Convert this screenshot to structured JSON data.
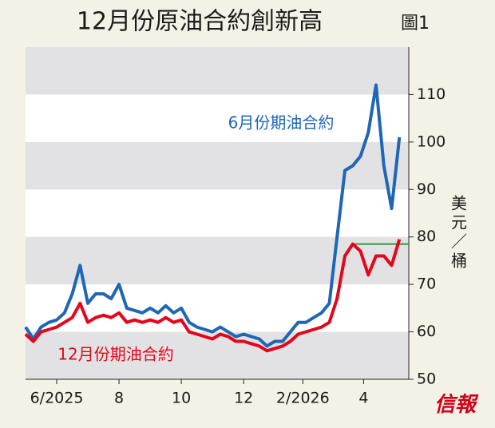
{
  "chart_data": {
    "type": "line",
    "title": "12月份原油合約創新高",
    "figure_label": "圖1",
    "y_label": "美元／桶",
    "source_logo": "信報",
    "x": [
      0,
      0.25,
      0.5,
      0.75,
      1,
      1.25,
      1.5,
      1.75,
      2,
      2.25,
      2.5,
      2.75,
      3,
      3.25,
      3.5,
      3.75,
      4,
      4.25,
      4.5,
      4.75,
      5,
      5.25,
      5.5,
      5.75,
      6,
      6.25,
      6.5,
      6.75,
      7,
      7.25,
      7.5,
      7.75,
      8,
      8.25,
      8.5,
      8.75,
      9,
      9.25,
      9.5,
      9.75,
      10,
      10.25,
      10.5,
      10.75,
      11,
      11.25,
      11.5,
      11.75,
      12
    ],
    "xlim": [
      0,
      12.3
    ],
    "xticks": [
      {
        "value": 1,
        "label": "6/2025"
      },
      {
        "value": 3,
        "label": "8"
      },
      {
        "value": 5,
        "label": "10"
      },
      {
        "value": 7,
        "label": "12"
      },
      {
        "value": 8.9,
        "label": "2/2026"
      },
      {
        "value": 10.85,
        "label": "4"
      }
    ],
    "ylim": [
      50,
      120
    ],
    "yticks": [
      50,
      60,
      70,
      80,
      90,
      100,
      110
    ],
    "grid_bands": true,
    "series": [
      {
        "name": "6月份期油合約",
        "color": "#1f66b5",
        "values": [
          61,
          58.5,
          61,
          62,
          62.5,
          64,
          68,
          74,
          66,
          68,
          68,
          67,
          70,
          65,
          64.5,
          64,
          65,
          64,
          65.5,
          64,
          65,
          62,
          61,
          60.5,
          60,
          61,
          60,
          59,
          59.5,
          59,
          58.5,
          57,
          58,
          58,
          60,
          62,
          62,
          63,
          64,
          66,
          80,
          94,
          95,
          97,
          102,
          112,
          95,
          86,
          101
        ]
      },
      {
        "name": "12月份期油合約",
        "color": "#e3061a",
        "values": [
          59.5,
          58,
          60,
          60.5,
          61,
          62,
          63,
          66,
          62,
          63,
          63.5,
          63,
          64,
          62,
          62.5,
          62,
          62.5,
          62,
          63,
          62,
          62.5,
          60,
          59.5,
          59,
          58.5,
          59.5,
          59,
          58,
          58,
          57.5,
          57,
          56,
          56.5,
          57,
          58,
          59.5,
          60,
          60.5,
          61,
          62,
          67,
          76,
          78.5,
          77,
          72,
          76,
          76,
          74,
          79.5
        ]
      }
    ],
    "reference_line": {
      "value": 78.5,
      "x_from": 10.55,
      "color": "#2e9a3a"
    }
  }
}
